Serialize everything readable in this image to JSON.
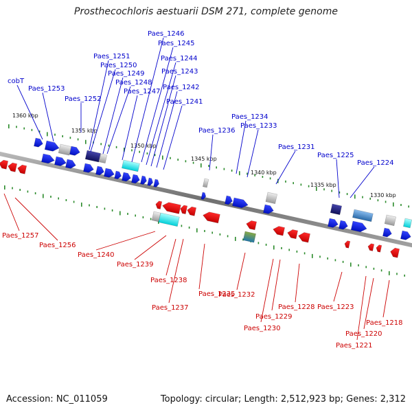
{
  "title": "Prosthecochloris aestuarii DSM 271, complete genome",
  "accession": "Accession: NC_011059",
  "summary": "Topology: circular; Length: 2,512,923 bp; Genes: 2,312",
  "colors": {
    "forward_label": "#0000cc",
    "reverse_label": "#cc0000",
    "forward_gene": "#0022dd",
    "reverse_gene": "#ee0000",
    "backbone": "#888888",
    "tick": "#2a8a2a"
  },
  "kbp_marks": [
    "1360 kbp",
    "1355 kbp",
    "1350 kbp",
    "1345 kbp",
    "1340 kbp",
    "1335 kbp",
    "1330 kbp"
  ],
  "forward_labels": [
    "cobT",
    "Paes_1253",
    "Paes_1252",
    "Paes_1251",
    "Paes_1250",
    "Paes_1249",
    "Paes_1248",
    "Paes_1247",
    "Paes_1246",
    "Paes_1245",
    "Paes_1244",
    "Paes_1243",
    "Paes_1242",
    "Paes_1241",
    "Paes_1236",
    "Paes_1234",
    "Paes_1233",
    "Paes_1231",
    "Paes_1225",
    "Paes_1224"
  ],
  "reverse_labels": [
    "Paes_1257",
    "Paes_1256",
    "Paes_1240",
    "Paes_1239",
    "Paes_1238",
    "Paes_1237",
    "Paes_1235",
    "Paes_1232",
    "Paes_1230",
    "Paes_1229",
    "Paes_1228",
    "Paes_1223",
    "Paes_1221",
    "Paes_1220",
    "Paes_1218"
  ]
}
